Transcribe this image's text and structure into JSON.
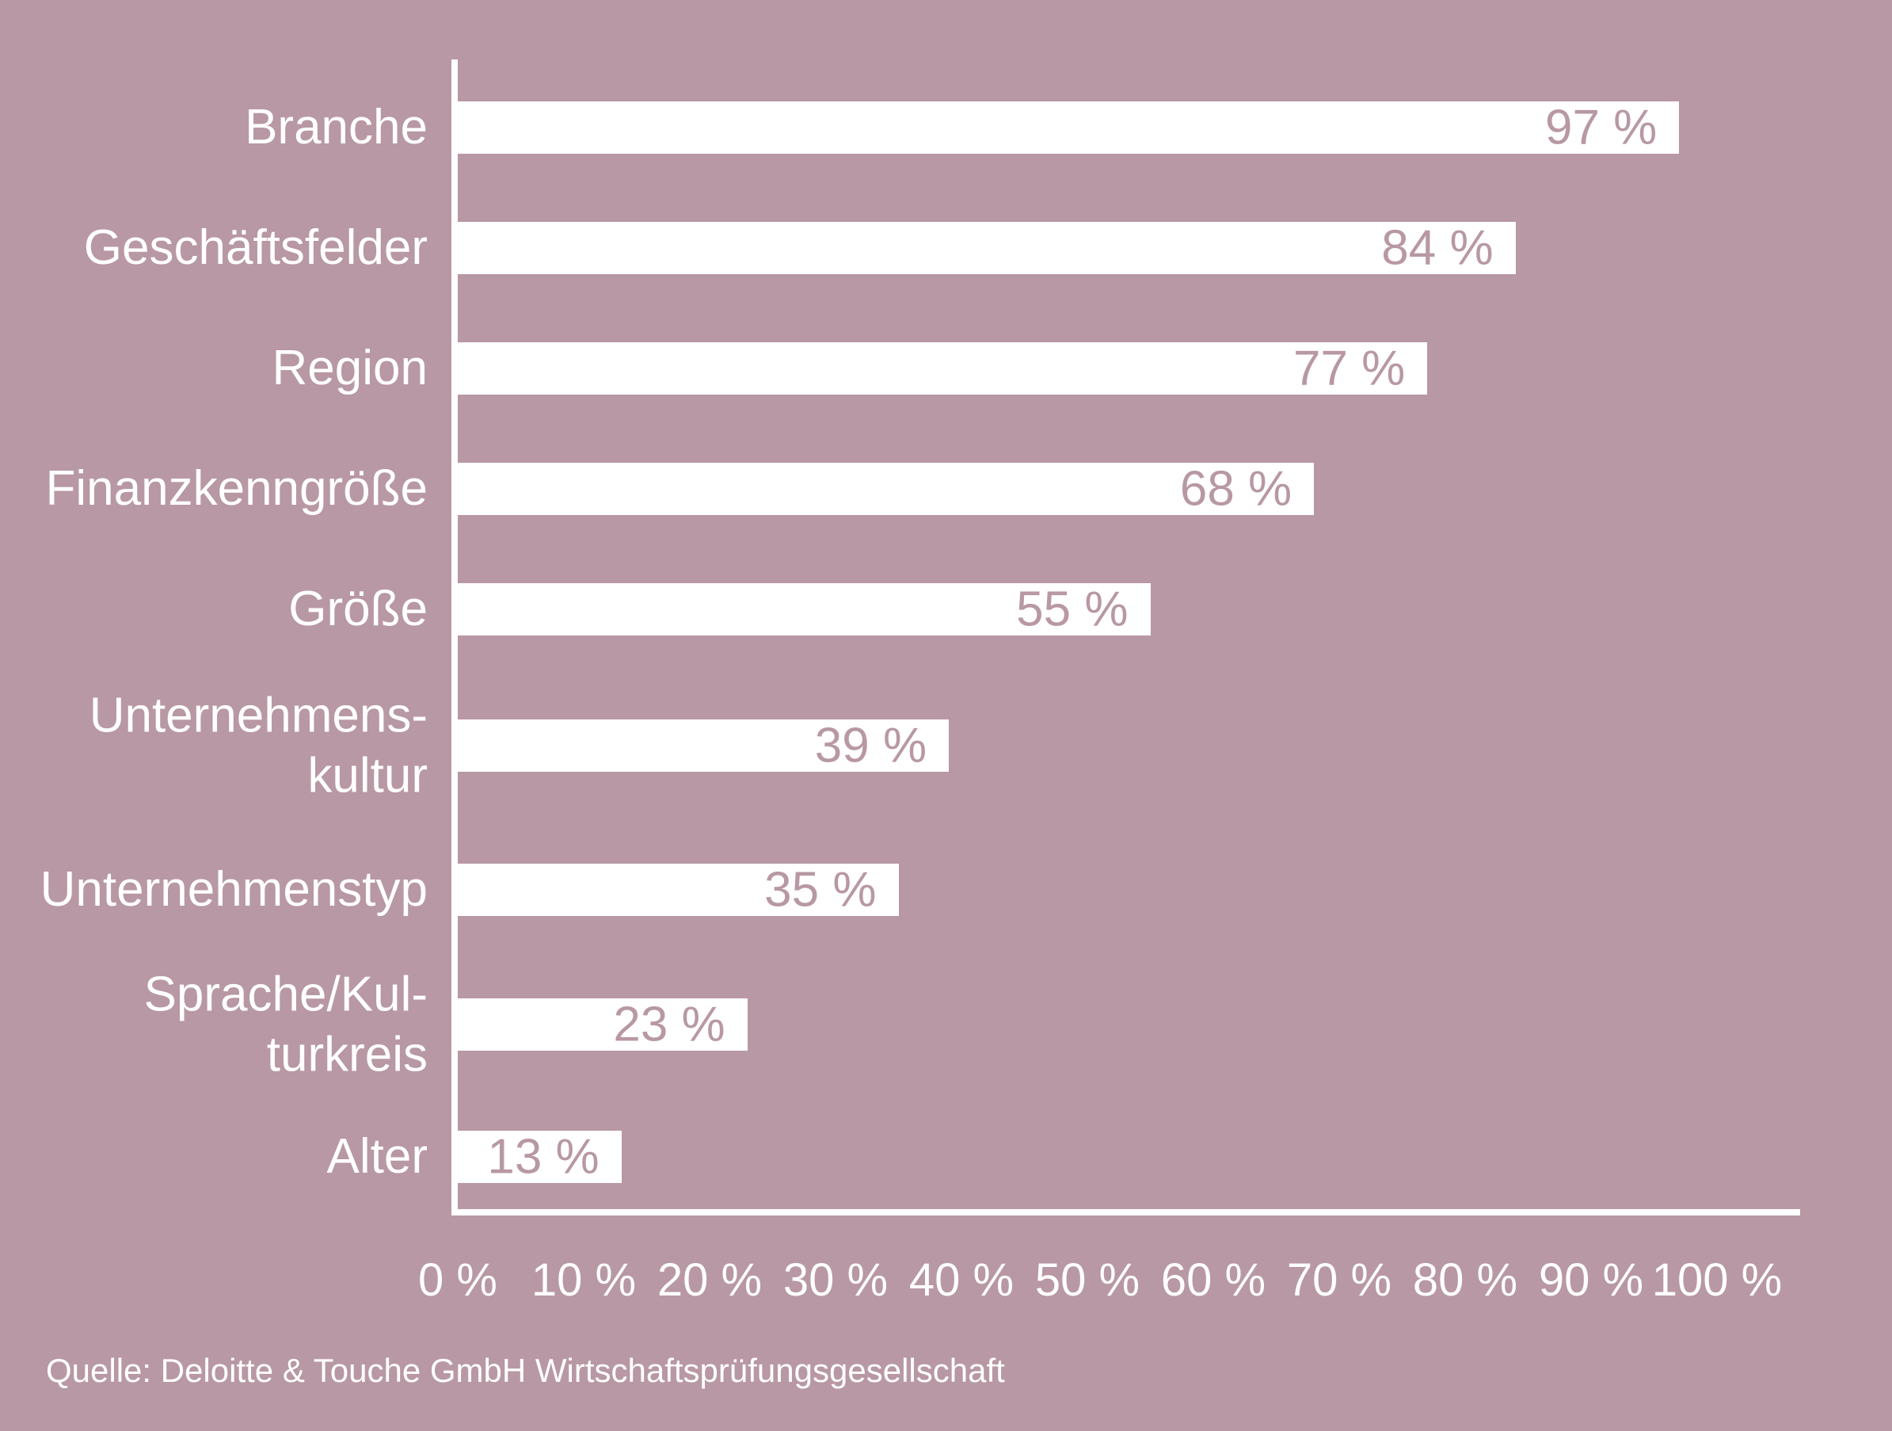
{
  "chart_data": {
    "type": "bar",
    "orientation": "horizontal",
    "title": "",
    "xlabel": "",
    "ylabel": "",
    "xlim": [
      0,
      100
    ],
    "grid": false,
    "legend": false,
    "categories": [
      "Branche",
      "Geschäftsfelder",
      "Region",
      "Finanzkenngröße",
      "Größe",
      "Unternehmens-kultur",
      "Unternehmenstyp",
      "Sprache/Kul-turkreis",
      "Alter"
    ],
    "values": [
      97,
      84,
      77,
      68,
      55,
      39,
      35,
      23,
      13
    ],
    "rows": [
      {
        "label_lines": [
          "Branche"
        ],
        "value": 97,
        "value_label": "97 %"
      },
      {
        "label_lines": [
          "Geschäftsfelder"
        ],
        "value": 84,
        "value_label": "84 %"
      },
      {
        "label_lines": [
          "Region"
        ],
        "value": 77,
        "value_label": "77 %"
      },
      {
        "label_lines": [
          "Finanzkenngröße"
        ],
        "value": 68,
        "value_label": "68 %"
      },
      {
        "label_lines": [
          "Größe"
        ],
        "value": 55,
        "value_label": "55 %"
      },
      {
        "label_lines": [
          "Unternehmens-",
          "kultur"
        ],
        "value": 39,
        "value_label": "39 %"
      },
      {
        "label_lines": [
          "Unternehmenstyp"
        ],
        "value": 35,
        "value_label": "35 %"
      },
      {
        "label_lines": [
          "Sprache/Kul-",
          "turkreis"
        ],
        "value": 23,
        "value_label": "23 %"
      },
      {
        "label_lines": [
          "Alter"
        ],
        "value": 13,
        "value_label": "13 %"
      }
    ],
    "x_ticks": [
      "0 %",
      "10 %",
      "20 %",
      "30 %",
      "40 %",
      "50 %",
      "60 %",
      "70 %",
      "80 %",
      "90 %",
      "100 %"
    ]
  },
  "source": "Quelle: Deloitte & Touche GmbH Wirtschaftsprüfungsgesellschaft",
  "colors": {
    "background": "#b898a4",
    "bar": "#ffffff",
    "axis": "#ffffff",
    "category_text": "#ffffff",
    "tick_text": "#ffffff",
    "value_text": "#b898a4",
    "source_text": "#ffffff"
  }
}
